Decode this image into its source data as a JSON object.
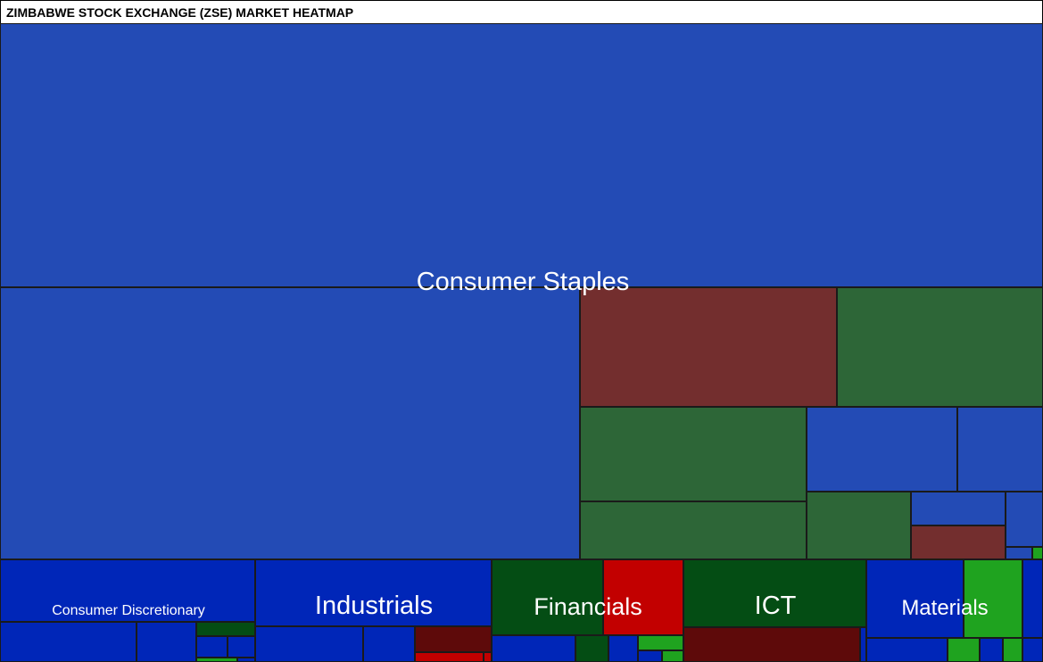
{
  "header": {
    "title": "ZIMBABWE STOCK EXCHANGE (ZSE) MARKET HEATMAP"
  },
  "colors": {
    "strong_up": "#1fa31f",
    "up": "#044d14",
    "slight_up": "#2d6637",
    "flat_large": "#234bb5",
    "flat": "#0026b8",
    "slight_down": "#732e2e",
    "down": "#5e0a0a",
    "strong_down": "#c20000",
    "border": "#1a1a1a",
    "label": "#ffffff"
  },
  "chart_data": {
    "type": "treemap",
    "title": "ZIMBABWE STOCK EXCHANGE (ZSE) MARKET HEATMAP",
    "sectors": [
      {
        "name": "Consumer Staples"
      },
      {
        "name": "Consumer Discretionary"
      },
      {
        "name": "Industrials"
      },
      {
        "name": "Financials"
      },
      {
        "name": "ICT"
      },
      {
        "name": "Materials"
      }
    ]
  }
}
